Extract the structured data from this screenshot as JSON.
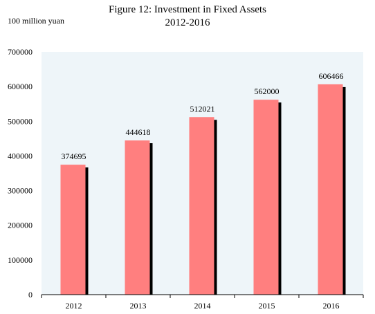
{
  "chart_data": {
    "type": "bar",
    "title": "Figure 12: Investment in Fixed Assets",
    "subtitle": "2012-2016",
    "ylabel": "100 million yuan",
    "xlabel": "",
    "categories": [
      "2012",
      "2013",
      "2014",
      "2015",
      "2016"
    ],
    "values": [
      374695,
      444618,
      512021,
      562000,
      606466
    ],
    "data_labels": [
      "374695",
      "444618",
      "512021",
      "562000",
      "606466"
    ],
    "ylim": [
      0,
      700000
    ],
    "y_ticks": [
      0,
      100000,
      200000,
      300000,
      400000,
      500000,
      600000,
      700000
    ],
    "y_tick_labels": [
      "0",
      "100000",
      "200000",
      "300000",
      "400000",
      "500000",
      "600000",
      "700000"
    ],
    "grid": false,
    "legend": "none",
    "colors": {
      "bar": "#ff7f7f",
      "bar_shadow": "#000000",
      "plot_background": "#eef5f9",
      "axis": "#000000"
    }
  }
}
